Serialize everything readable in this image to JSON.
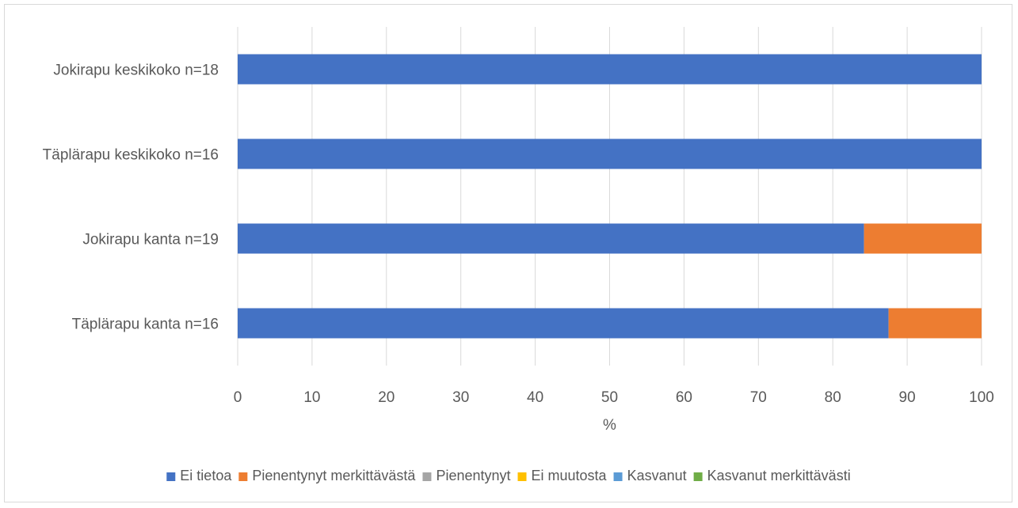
{
  "chart_data": {
    "type": "bar",
    "orientation": "horizontal",
    "stacked": true,
    "categories": [
      "Jokirapu keskikoko n=18",
      "Täplärapu keskikoko n=16",
      "Jokirapu kanta n=19",
      "Täplärapu kanta n=16"
    ],
    "series": [
      {
        "name": "Ei tietoa",
        "color": "#4472c4",
        "values": [
          100,
          100,
          84.2,
          87.5
        ]
      },
      {
        "name": "Pienentynyt merkittävästä",
        "color": "#ed7d31",
        "values": [
          0,
          0,
          15.8,
          12.5
        ]
      },
      {
        "name": "Pienentynyt",
        "color": "#a5a5a5",
        "values": [
          0,
          0,
          0,
          0
        ]
      },
      {
        "name": "Ei muutosta",
        "color": "#ffc000",
        "values": [
          0,
          0,
          0,
          0
        ]
      },
      {
        "name": "Kasvanut",
        "color": "#5b9bd5",
        "values": [
          0,
          0,
          0,
          0
        ]
      },
      {
        "name": "Kasvanut merkittävästi",
        "color": "#70ad47",
        "values": [
          0,
          0,
          0,
          0
        ]
      }
    ],
    "xlabel": "%",
    "xlim": [
      0,
      100
    ],
    "xticks": [
      "0",
      "10",
      "20",
      "30",
      "40",
      "50",
      "60",
      "70",
      "80",
      "90",
      "100"
    ],
    "grid": "vertical",
    "legend": "bottom"
  }
}
